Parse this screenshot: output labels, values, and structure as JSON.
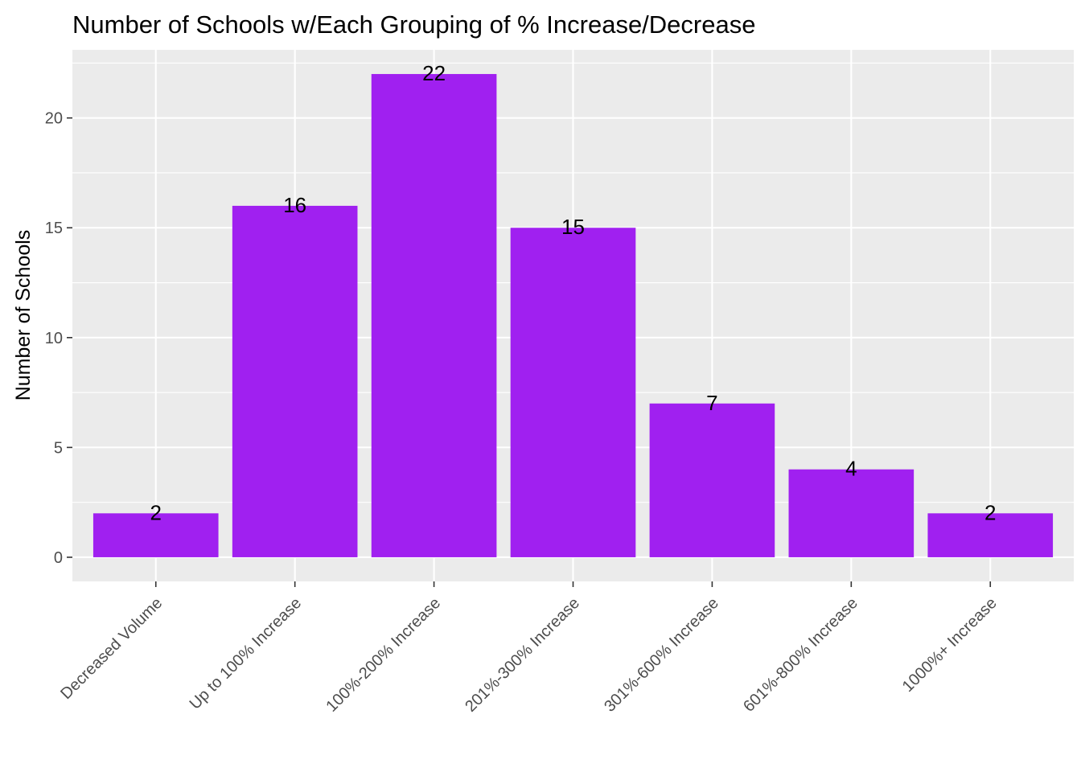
{
  "chart_data": {
    "type": "bar",
    "title": "Number of Schools w/Each Grouping of % Increase/Decrease",
    "xlabel": "",
    "ylabel": "Number of Schools",
    "categories": [
      "Decreased Volume",
      "Up to 100% Increase",
      "100%-200% Increase",
      "201%-300% Increase",
      "301%-600% Increase",
      "601%-800% Increase",
      "1000%+ Increase"
    ],
    "values": [
      2,
      16,
      22,
      15,
      7,
      4,
      2
    ],
    "data_labels": [
      "2",
      "16",
      "22",
      "15",
      "7",
      "4",
      "2"
    ],
    "yticks": [
      0,
      5,
      10,
      15,
      20
    ],
    "ytick_labels": [
      "0",
      "5",
      "10",
      "15",
      "20"
    ],
    "ylim": [
      -1.1,
      23.1
    ],
    "grid": true,
    "legend": "none",
    "colors": {
      "bar": "#A020F0",
      "panel_background": "#EBEBEB",
      "grid": "#FFFFFF"
    }
  }
}
